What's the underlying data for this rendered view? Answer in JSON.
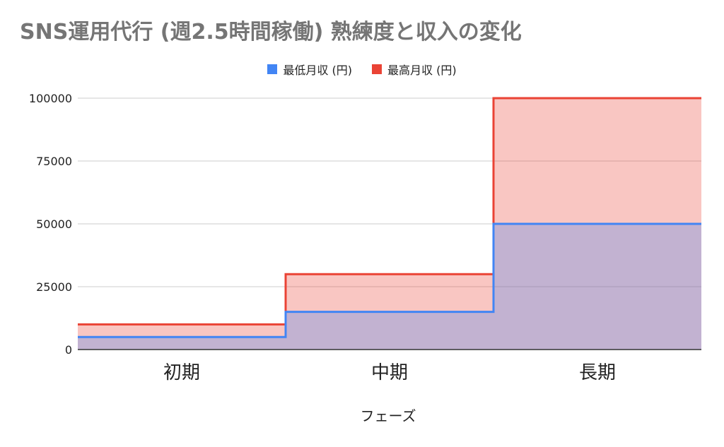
{
  "chart_data": {
    "type": "area",
    "title": "SNS運用代行 (週2.5時間稼働)  熟練度と収入の変化",
    "xlabel": "フェーズ",
    "ylabel": "",
    "categories": [
      "初期",
      "中期",
      "長期"
    ],
    "series": [
      {
        "name": "最低月収 (円)",
        "values": [
          5000,
          15000,
          50000
        ],
        "color": "#4285f4"
      },
      {
        "name": "最高月収 (円)",
        "values": [
          10000,
          30000,
          100000
        ],
        "color": "#ea4335"
      }
    ],
    "ylim": [
      0,
      100000
    ],
    "yticks": [
      "0",
      "25000",
      "50000",
      "75000",
      "100000"
    ],
    "stepped": true,
    "grid": true,
    "legend": "top"
  }
}
